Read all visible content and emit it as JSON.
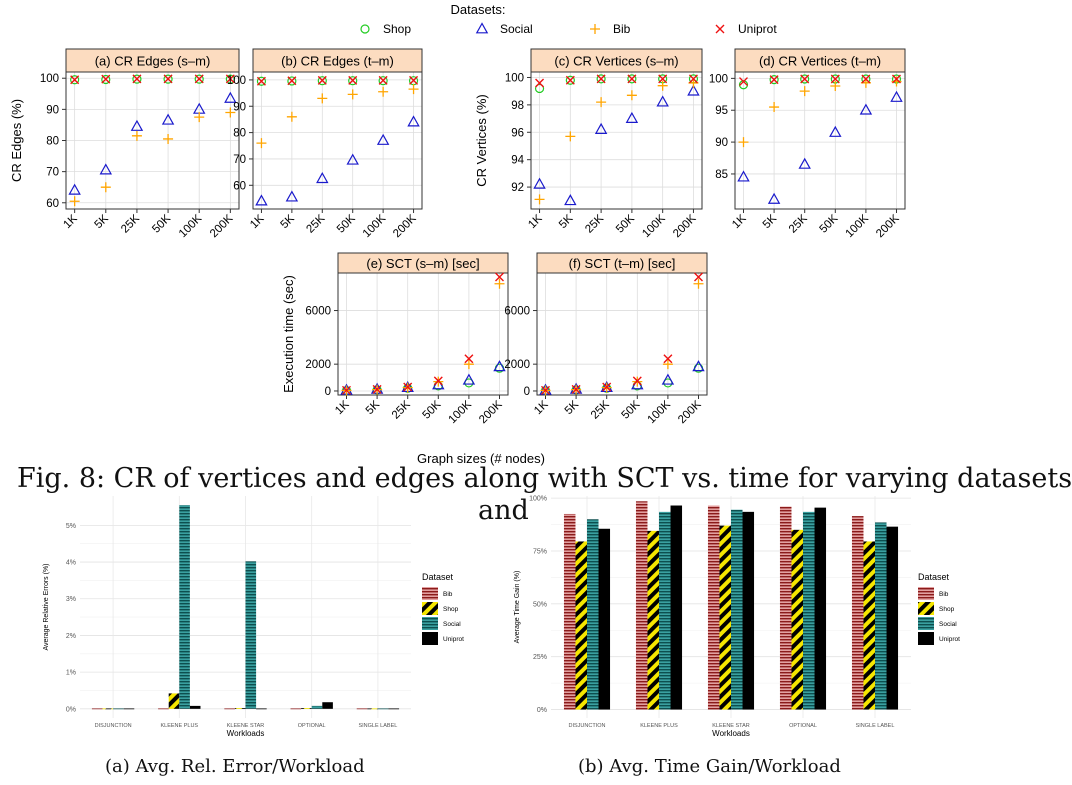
{
  "legend_top": {
    "title": "Datasets:",
    "items": [
      {
        "name": "Shop",
        "symbol": "circle",
        "color": "#22cc22"
      },
      {
        "name": "Social",
        "symbol": "triangle",
        "color": "#1a1acc"
      },
      {
        "name": "Bib",
        "symbol": "plus",
        "color": "#ffa500"
      },
      {
        "name": "Uniprot",
        "symbol": "cross",
        "color": "#ee1111"
      }
    ]
  },
  "shared_x_title": "Graph sizes (# nodes)",
  "overlap_caption_line1": "Fig. 8: CR of vertices and edges along with SCT vs. time for varying datasets",
  "overlap_caption_line2": "and",
  "colors": {
    "strip_fill": "#fcdcc0",
    "grid": "#dddddd",
    "panel_border": "#333333"
  },
  "chart_data": [
    {
      "type": "scatter",
      "id": "a",
      "title": "(a) CR Edges (s–m)",
      "ylabel": "CR Edges (%)",
      "categories": [
        "1K",
        "5K",
        "25K",
        "50K",
        "100K",
        "200K"
      ],
      "ylim": [
        58,
        102
      ],
      "yticks": [
        60,
        70,
        80,
        90,
        100
      ],
      "series": [
        {
          "name": "Shop",
          "values": [
            99.5,
            99.6,
            99.7,
            99.7,
            99.7,
            99.7
          ]
        },
        {
          "name": "Social",
          "values": [
            64,
            70.5,
            84.5,
            86.5,
            90,
            93.5
          ]
        },
        {
          "name": "Bib",
          "values": [
            60.5,
            65,
            81.5,
            80.5,
            87.5,
            89
          ]
        },
        {
          "name": "Uniprot",
          "values": [
            99.5,
            99.7,
            99.8,
            99.8,
            99.8,
            99.8
          ]
        }
      ]
    },
    {
      "type": "scatter",
      "id": "b",
      "title": "(b) CR Edges (t–m)",
      "ylabel": "",
      "categories": [
        "1K",
        "5K",
        "25K",
        "50K",
        "100K",
        "200K"
      ],
      "ylim": [
        51,
        103
      ],
      "yticks": [
        60,
        70,
        80,
        90,
        100
      ],
      "series": [
        {
          "name": "Shop",
          "values": [
            99.5,
            99.6,
            99.7,
            99.7,
            99.7,
            99.7
          ]
        },
        {
          "name": "Social",
          "values": [
            54,
            55.5,
            62.5,
            69.5,
            77,
            84
          ]
        },
        {
          "name": "Bib",
          "values": [
            76,
            86,
            93,
            94.5,
            95.5,
            96.5
          ]
        },
        {
          "name": "Uniprot",
          "values": [
            99.5,
            99.7,
            99.8,
            99.8,
            99.8,
            99.8
          ]
        }
      ]
    },
    {
      "type": "scatter",
      "id": "c",
      "title": "(c) CR Vertices (s–m)",
      "ylabel": "CR Vertices (%)",
      "categories": [
        "1K",
        "5K",
        "25K",
        "50K",
        "100K",
        "200K"
      ],
      "ylim": [
        90.4,
        100.4
      ],
      "yticks": [
        92,
        94,
        96,
        98,
        100
      ],
      "series": [
        {
          "name": "Shop",
          "values": [
            99.2,
            99.8,
            99.9,
            99.9,
            99.9,
            99.9
          ]
        },
        {
          "name": "Social",
          "values": [
            92.2,
            91,
            96.2,
            97,
            98.2,
            99
          ]
        },
        {
          "name": "Bib",
          "values": [
            91.1,
            95.7,
            98.2,
            98.7,
            99.4,
            99.6
          ]
        },
        {
          "name": "Uniprot",
          "values": [
            99.6,
            99.8,
            99.9,
            99.9,
            99.9,
            99.9
          ]
        }
      ]
    },
    {
      "type": "scatter",
      "id": "d",
      "title": "(d) CR Vertices (t–m)",
      "ylabel": "",
      "categories": [
        "1K",
        "5K",
        "25K",
        "50K",
        "100K",
        "200K"
      ],
      "ylim": [
        79.5,
        101
      ],
      "yticks": [
        85,
        90,
        95,
        100
      ],
      "series": [
        {
          "name": "Shop",
          "values": [
            99,
            99.8,
            99.9,
            99.9,
            99.9,
            99.9
          ]
        },
        {
          "name": "Social",
          "values": [
            84.5,
            81,
            86.5,
            91.5,
            95,
            97
          ]
        },
        {
          "name": "Bib",
          "values": [
            90,
            95.5,
            98,
            98.8,
            99.3,
            99.5
          ]
        },
        {
          "name": "Uniprot",
          "values": [
            99.5,
            99.8,
            99.9,
            99.9,
            99.9,
            99.9
          ]
        }
      ]
    },
    {
      "type": "scatter",
      "id": "e",
      "title": "(e) SCT (s–m) [sec]",
      "ylabel": "Execution time (sec)",
      "categories": [
        "1K",
        "5K",
        "25K",
        "50K",
        "100K",
        "200K"
      ],
      "ylim": [
        -300,
        8800
      ],
      "yticks": [
        0,
        2000,
        6000
      ],
      "series": [
        {
          "name": "Shop",
          "values": [
            30,
            80,
            200,
            380,
            600,
            1700
          ]
        },
        {
          "name": "Social",
          "values": [
            50,
            120,
            250,
            450,
            800,
            1800
          ]
        },
        {
          "name": "Bib",
          "values": [
            40,
            100,
            250,
            700,
            2000,
            8000
          ]
        },
        {
          "name": "Uniprot",
          "values": [
            50,
            120,
            300,
            750,
            2400,
            8500
          ]
        }
      ]
    },
    {
      "type": "scatter",
      "id": "f",
      "title": "(f) SCT (t–m) [sec]",
      "ylabel": "",
      "categories": [
        "1K",
        "5K",
        "25K",
        "50K",
        "100K",
        "200K"
      ],
      "ylim": [
        -300,
        8800
      ],
      "yticks": [
        0,
        2000,
        6000
      ],
      "series": [
        {
          "name": "Shop",
          "values": [
            30,
            80,
            200,
            380,
            600,
            1700
          ]
        },
        {
          "name": "Social",
          "values": [
            50,
            120,
            250,
            450,
            800,
            1800
          ]
        },
        {
          "name": "Bib",
          "values": [
            40,
            100,
            250,
            700,
            2000,
            8000
          ]
        },
        {
          "name": "Uniprot",
          "values": [
            50,
            120,
            300,
            750,
            2400,
            8500
          ]
        }
      ]
    },
    {
      "type": "bar",
      "id": "g",
      "caption": "(a) Avg. Rel. Error/Workload",
      "xlabel": "Workloads",
      "ylabel": "Average Relative Errors (%)",
      "categories": [
        "DISJUNCTION",
        "KLEENE PLUS",
        "KLEENE STAR",
        "OPTIONAL",
        "SINGLE LABEL"
      ],
      "ylim": [
        -0.25,
        5.8
      ],
      "yticks": [
        0,
        1,
        2,
        3,
        4,
        5
      ],
      "ytick_labels": [
        "0%",
        "1%",
        "2%",
        "3%",
        "4%",
        "5%"
      ],
      "legend_title": "Dataset",
      "series": [
        {
          "name": "Bib",
          "values": [
            0.01,
            0.01,
            0.01,
            0.01,
            0.01
          ]
        },
        {
          "name": "Shop",
          "values": [
            0.01,
            0.42,
            0.02,
            0.02,
            0.01
          ]
        },
        {
          "name": "Social",
          "values": [
            0.01,
            5.55,
            4.02,
            0.08,
            0.01
          ]
        },
        {
          "name": "Uniprot",
          "values": [
            0.01,
            0.08,
            0.01,
            0.18,
            0.01
          ]
        }
      ]
    },
    {
      "type": "bar",
      "id": "h",
      "caption": "(b) Avg. Time Gain/Workload",
      "xlabel": "Workloads",
      "ylabel": "Average Time Gain (%)",
      "categories": [
        "DISJUNCTION",
        "KLEENE PLUS",
        "KLEENE STAR",
        "OPTIONAL",
        "SINGLE LABEL"
      ],
      "ylim": [
        -4,
        101
      ],
      "yticks": [
        0,
        25,
        50,
        75,
        100
      ],
      "ytick_labels": [
        "0%",
        "25%",
        "50%",
        "75%",
        "100%"
      ],
      "legend_title": "Dataset",
      "series": [
        {
          "name": "Bib",
          "values": [
            92.5,
            98.5,
            96.5,
            96,
            91.5
          ]
        },
        {
          "name": "Shop",
          "values": [
            79.5,
            84.5,
            87,
            85,
            79.5
          ]
        },
        {
          "name": "Social",
          "values": [
            90,
            93.5,
            94.5,
            93.5,
            88.5
          ]
        },
        {
          "name": "Uniprot",
          "values": [
            85.5,
            96.5,
            93.5,
            95.5,
            86.5
          ]
        }
      ]
    }
  ]
}
